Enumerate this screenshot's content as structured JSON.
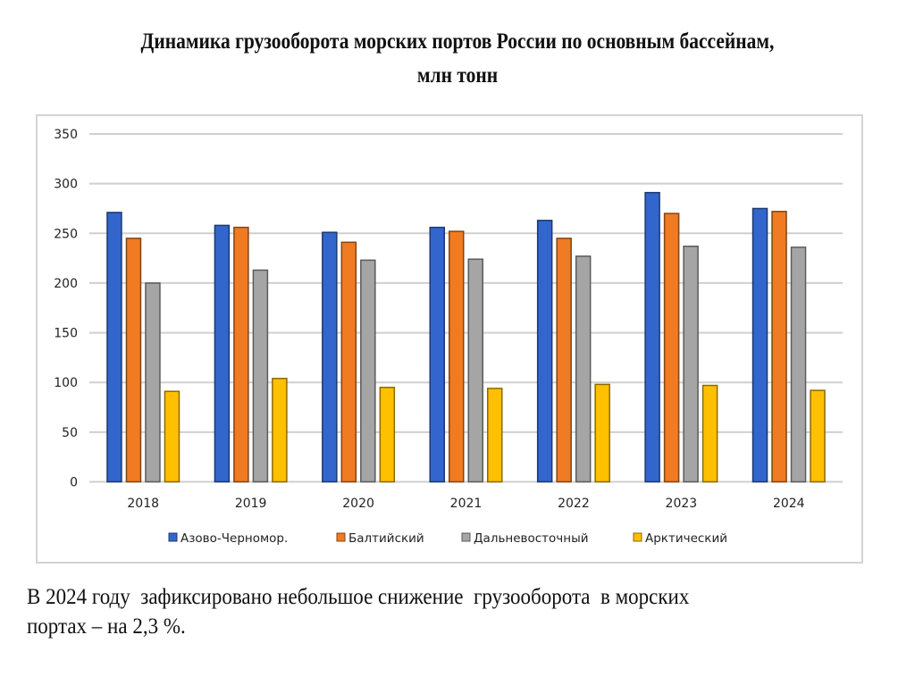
{
  "slide": {
    "title_line1": "Динамика грузооборота морских портов России по основным бассейнам,",
    "title_line2": "млн тонн",
    "caption_line1": "В 2024 году  зафиксировано небольшое снижение  грузооборота  в морских",
    "caption_line2": "портах – на 2,3 %."
  },
  "chart_data": {
    "type": "bar",
    "title": "",
    "xlabel": "",
    "ylabel": "",
    "categories": [
      "2018",
      "2019",
      "2020",
      "2021",
      "2022",
      "2023",
      "2024"
    ],
    "series": [
      {
        "name": "Азово-Черномор.",
        "color": "#3366cc",
        "values": [
          271,
          258,
          251,
          256,
          263,
          291,
          275
        ]
      },
      {
        "name": "Балтийский",
        "color": "#f07b22",
        "values": [
          245,
          256,
          241,
          252,
          245,
          270,
          272
        ]
      },
      {
        "name": "Дальневосточный",
        "color": "#a5a5a5",
        "values": [
          200,
          213,
          223,
          224,
          227,
          237,
          236
        ]
      },
      {
        "name": "Арктический",
        "color": "#ffc000",
        "values": [
          91,
          104,
          95,
          94,
          98,
          97,
          92
        ]
      }
    ],
    "ylim": [
      0,
      350
    ],
    "yticks": [
      0,
      50,
      100,
      150,
      200,
      250,
      300,
      350
    ],
    "grid": true,
    "legend_position": "bottom"
  }
}
